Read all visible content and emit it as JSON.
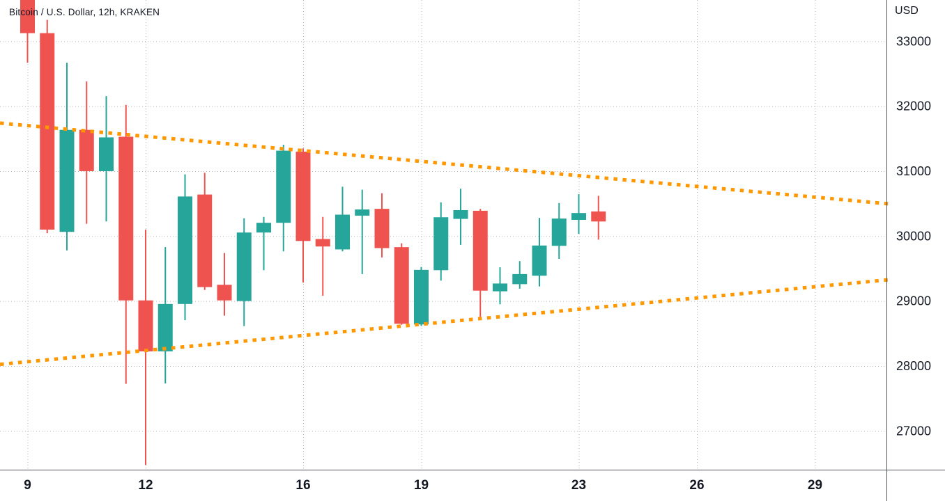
{
  "chart": {
    "title": "Bitcoin / U.S. Dollar, 12h, KRAKEN",
    "symbol": "Bitcoin / U.S. Dollar",
    "interval": "12h",
    "exchange": "KRAKEN"
  },
  "axes": {
    "currency_label": "USD",
    "price_ticks": [
      33000,
      32000,
      31000,
      30000,
      29000,
      28000,
      27000
    ],
    "time_ticks": [
      {
        "label": "9",
        "day": 9
      },
      {
        "label": "12",
        "day": 12
      },
      {
        "label": "16",
        "day": 16
      },
      {
        "label": "19",
        "day": 19
      },
      {
        "label": "23",
        "day": 23
      },
      {
        "label": "26",
        "day": 26
      },
      {
        "label": "29",
        "day": 29
      }
    ]
  },
  "chart_data": {
    "type": "candlestick",
    "title": "Bitcoin / U.S. Dollar, 12h, KRAKEN",
    "x_unit": "day-of-month, 12h sessions",
    "visible_day_range": [
      8.3,
      30.9
    ],
    "price_range_visible": [
      26350,
      33650
    ],
    "grid": "dotted",
    "legend_position": "none",
    "candles": [
      {
        "day": 9.0,
        "open": 33700,
        "high": 33700,
        "low": 32670,
        "close": 33125
      },
      {
        "day": 9.5,
        "open": 33125,
        "high": 33330,
        "low": 30045,
        "close": 30100
      },
      {
        "day": 10.0,
        "open": 30065,
        "high": 32670,
        "low": 29780,
        "close": 31635
      },
      {
        "day": 10.5,
        "open": 31635,
        "high": 32380,
        "low": 30190,
        "close": 31000
      },
      {
        "day": 11.0,
        "open": 31000,
        "high": 32155,
        "low": 30225,
        "close": 31520
      },
      {
        "day": 11.5,
        "open": 31530,
        "high": 32020,
        "low": 27725,
        "close": 29010
      },
      {
        "day": 12.0,
        "open": 29010,
        "high": 30100,
        "low": 26475,
        "close": 28225
      },
      {
        "day": 12.5,
        "open": 28225,
        "high": 29830,
        "low": 27730,
        "close": 28955
      },
      {
        "day": 13.0,
        "open": 28955,
        "high": 30950,
        "low": 28705,
        "close": 30610
      },
      {
        "day": 13.5,
        "open": 30640,
        "high": 30975,
        "low": 29170,
        "close": 29215
      },
      {
        "day": 14.0,
        "open": 29250,
        "high": 29740,
        "low": 28775,
        "close": 29010
      },
      {
        "day": 14.5,
        "open": 29000,
        "high": 30275,
        "low": 28615,
        "close": 30055
      },
      {
        "day": 15.0,
        "open": 30055,
        "high": 30295,
        "low": 29475,
        "close": 30205
      },
      {
        "day": 15.5,
        "open": 30205,
        "high": 31405,
        "low": 29765,
        "close": 31315
      },
      {
        "day": 16.0,
        "open": 31300,
        "high": 31350,
        "low": 29285,
        "close": 29925
      },
      {
        "day": 16.5,
        "open": 29955,
        "high": 30295,
        "low": 29080,
        "close": 29840
      },
      {
        "day": 17.0,
        "open": 29795,
        "high": 30760,
        "low": 29765,
        "close": 30330
      },
      {
        "day": 17.5,
        "open": 30315,
        "high": 30715,
        "low": 29415,
        "close": 30410
      },
      {
        "day": 18.0,
        "open": 30420,
        "high": 30660,
        "low": 29670,
        "close": 29815
      },
      {
        "day": 18.5,
        "open": 29830,
        "high": 29890,
        "low": 28635,
        "close": 28650
      },
      {
        "day": 19.0,
        "open": 28640,
        "high": 29525,
        "low": 28620,
        "close": 29480
      },
      {
        "day": 19.5,
        "open": 29475,
        "high": 30520,
        "low": 29315,
        "close": 30290
      },
      {
        "day": 20.0,
        "open": 30265,
        "high": 30730,
        "low": 29865,
        "close": 30400
      },
      {
        "day": 20.5,
        "open": 30390,
        "high": 30420,
        "low": 28715,
        "close": 29160
      },
      {
        "day": 21.0,
        "open": 29150,
        "high": 29520,
        "low": 28950,
        "close": 29270
      },
      {
        "day": 21.5,
        "open": 29260,
        "high": 29615,
        "low": 29190,
        "close": 29415
      },
      {
        "day": 22.0,
        "open": 29390,
        "high": 30280,
        "low": 29225,
        "close": 29855
      },
      {
        "day": 22.5,
        "open": 29850,
        "high": 30510,
        "low": 29650,
        "close": 30270
      },
      {
        "day": 23.0,
        "open": 30250,
        "high": 30645,
        "low": 30035,
        "close": 30355
      },
      {
        "day": 23.5,
        "open": 30380,
        "high": 30620,
        "low": 29945,
        "close": 30225
      }
    ],
    "trendlines": [
      {
        "name": "descending-resistance",
        "style": "dotted",
        "day1": 8.302,
        "price1": 31740,
        "day2": 30.898,
        "price2": 30495
      },
      {
        "name": "ascending-support",
        "style": "dotted",
        "day1": 8.302,
        "price1": 28025,
        "day2": 30.898,
        "price2": 29330
      }
    ],
    "colors": {
      "up": "#26a69a",
      "down": "#ef5350",
      "trendline": "#ff9800",
      "grid": "#b2b5be",
      "axis_line": "#50535e",
      "axis_text": "#131722",
      "background": "#ffffff"
    }
  }
}
